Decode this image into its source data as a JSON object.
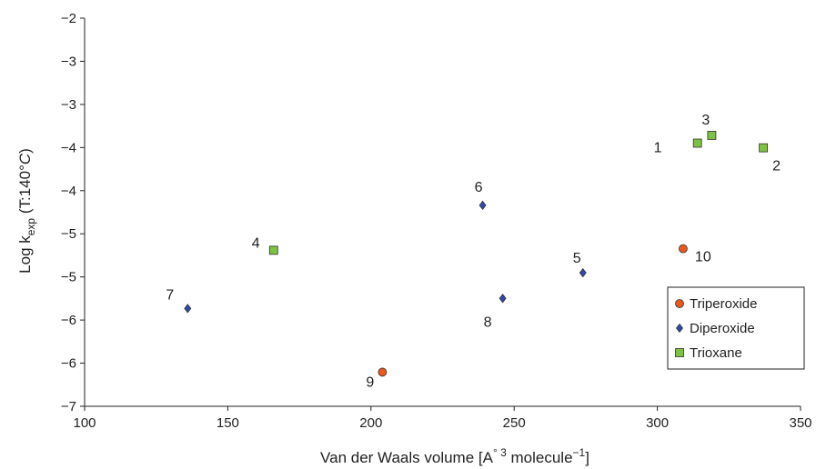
{
  "chart_data": {
    "type": "scatter",
    "xlabel": {
      "main": "Van der Waals  volume [A",
      "sup1": "° 3",
      "mid": " molecule",
      "sup2": "−1",
      "end": "]"
    },
    "ylabel": {
      "pre": "Log k",
      "sub": "exp",
      "post": " (T:140°",
      "unit": "C",
      "close": ")"
    },
    "xlim": [
      100,
      350
    ],
    "ylim": [
      -7,
      -2
    ],
    "x_ticks": [
      100,
      150,
      200,
      250,
      300,
      350
    ],
    "y_tick_labels": [
      "−2",
      "−3",
      "−3",
      "−4",
      "−4",
      "−5",
      "−5",
      "−6",
      "−6",
      "−7"
    ],
    "grid": false,
    "legend_position": "bottom-right",
    "series": [
      {
        "name": "Triperoxide",
        "marker": "circle",
        "color": "#e8591c",
        "points": [
          {
            "x": 204,
            "y": -6.56,
            "label": "9"
          },
          {
            "x": 309,
            "y": -4.97,
            "label": "10"
          }
        ]
      },
      {
        "name": "Diperoxide",
        "marker": "diamond",
        "color": "#2f4aa6",
        "points": [
          {
            "x": 136,
            "y": -5.74,
            "label": "7"
          },
          {
            "x": 239,
            "y": -4.41,
            "label": "6"
          },
          {
            "x": 246,
            "y": -5.61,
            "label": "8"
          },
          {
            "x": 274,
            "y": -5.28,
            "label": "5"
          }
        ]
      },
      {
        "name": "Trioxane",
        "marker": "square",
        "color": "#7dc242",
        "points": [
          {
            "x": 166,
            "y": -4.99,
            "label": "4"
          },
          {
            "x": 314,
            "y": -3.61,
            "label": "1"
          },
          {
            "x": 319,
            "y": -3.51,
            "label": "3"
          },
          {
            "x": 337,
            "y": -3.67,
            "label": "2"
          }
        ]
      }
    ]
  }
}
